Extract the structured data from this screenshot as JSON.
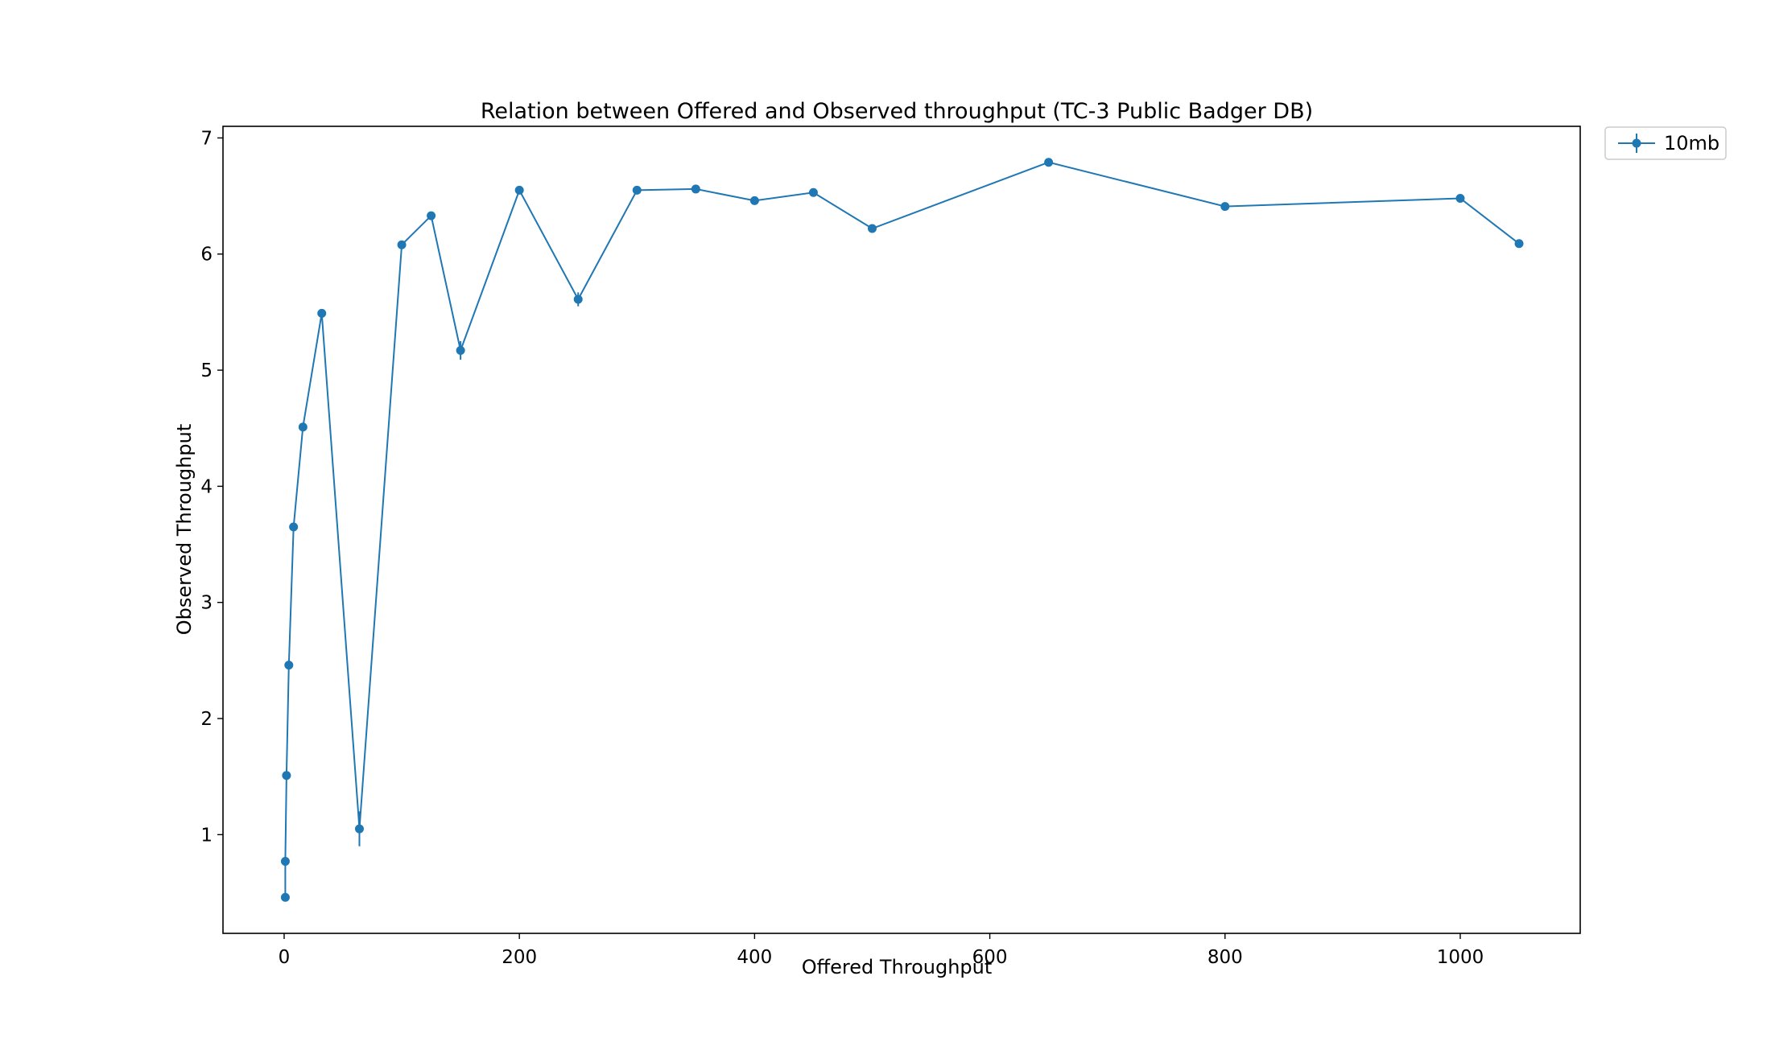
{
  "chart_data": {
    "type": "line",
    "title": "Relation between Offered and Observed throughput (TC-3  Public Badger DB)",
    "xlabel": "Offered Throughput",
    "ylabel": "Observed Throughput",
    "xlim": [
      -52,
      1102
    ],
    "ylim": [
      0.15,
      7.1
    ],
    "xticks": [
      0,
      200,
      400,
      600,
      800,
      1000
    ],
    "yticks": [
      1,
      2,
      3,
      4,
      5,
      6,
      7
    ],
    "grid": false,
    "legend_position": "outside-top-right",
    "series": [
      {
        "name": "10mb",
        "color": "#1f77b4",
        "marker": "circle",
        "error_bars": true,
        "points": [
          {
            "x": 1,
            "y": 0.46,
            "err": 0.02
          },
          {
            "x": 1,
            "y": 0.77,
            "err": 0.02
          },
          {
            "x": 2,
            "y": 1.51,
            "err": 0.02
          },
          {
            "x": 4,
            "y": 2.46,
            "err": 0.02
          },
          {
            "x": 8,
            "y": 3.65,
            "err": 0.02
          },
          {
            "x": 16,
            "y": 4.51,
            "err": 0.02
          },
          {
            "x": 32,
            "y": 5.49,
            "err": 0.02
          },
          {
            "x": 64,
            "y": 1.05,
            "err": 0.15
          },
          {
            "x": 100,
            "y": 6.08,
            "err": 0.02
          },
          {
            "x": 125,
            "y": 6.33,
            "err": 0.02
          },
          {
            "x": 150,
            "y": 5.17,
            "err": 0.08
          },
          {
            "x": 200,
            "y": 6.55,
            "err": 0.02
          },
          {
            "x": 250,
            "y": 5.61,
            "err": 0.06
          },
          {
            "x": 300,
            "y": 6.55,
            "err": 0.02
          },
          {
            "x": 350,
            "y": 6.56,
            "err": 0.02
          },
          {
            "x": 400,
            "y": 6.46,
            "err": 0.02
          },
          {
            "x": 450,
            "y": 6.53,
            "err": 0.02
          },
          {
            "x": 500,
            "y": 6.22,
            "err": 0.02
          },
          {
            "x": 650,
            "y": 6.79,
            "err": 0.02
          },
          {
            "x": 800,
            "y": 6.41,
            "err": 0.02
          },
          {
            "x": 1000,
            "y": 6.48,
            "err": 0.02
          },
          {
            "x": 1050,
            "y": 6.09,
            "err": 0.02
          }
        ]
      }
    ]
  }
}
